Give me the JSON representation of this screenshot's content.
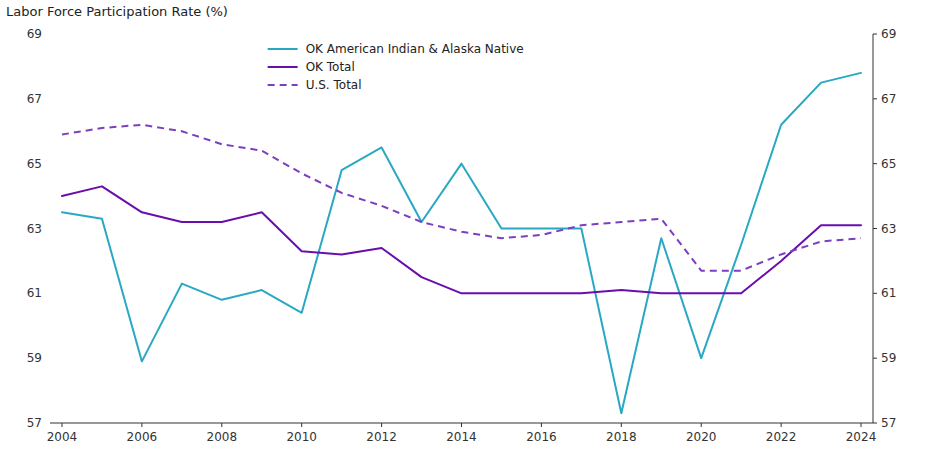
{
  "chart_data": {
    "type": "line",
    "y_label": "Labor Force Participation Rate (%)",
    "x": [
      2004,
      2005,
      2006,
      2007,
      2008,
      2009,
      2010,
      2011,
      2012,
      2013,
      2014,
      2015,
      2016,
      2017,
      2018,
      2019,
      2020,
      2021,
      2022,
      2023,
      2024
    ],
    "series": [
      {
        "name": "OK American Indian & Alaska Native",
        "color": "#29a8c4",
        "line_style": "solid",
        "values": [
          63.5,
          63.3,
          58.9,
          61.3,
          60.8,
          61.1,
          60.4,
          64.8,
          65.5,
          63.2,
          65.0,
          63.0,
          63.0,
          63.0,
          57.3,
          62.7,
          59.0,
          62.5,
          66.2,
          67.5,
          67.8
        ]
      },
      {
        "name": "OK Total",
        "color": "#6a0dad",
        "line_style": "solid",
        "values": [
          64.0,
          64.3,
          63.5,
          63.2,
          63.2,
          63.5,
          62.3,
          62.2,
          62.4,
          61.5,
          61.0,
          61.0,
          61.0,
          61.0,
          61.1,
          61.0,
          61.0,
          61.0,
          62.0,
          63.1,
          63.1
        ]
      },
      {
        "name": "U.S. Total",
        "color": "#7b3fbf",
        "line_style": "dashed",
        "values": [
          65.9,
          66.1,
          66.2,
          66.0,
          65.6,
          65.4,
          64.7,
          64.1,
          63.7,
          63.2,
          62.9,
          62.7,
          62.8,
          63.1,
          63.2,
          63.3,
          61.7,
          61.7,
          62.2,
          62.6,
          62.7
        ]
      }
    ],
    "xlim": [
      2003.7,
      2024.3
    ],
    "xticks": [
      2004,
      2006,
      2008,
      2010,
      2012,
      2014,
      2016,
      2018,
      2020,
      2022,
      2024
    ],
    "ylim": [
      57,
      69
    ],
    "yticks": [
      57,
      59,
      61,
      63,
      65,
      67,
      69
    ],
    "grid": false,
    "legend": "top"
  }
}
